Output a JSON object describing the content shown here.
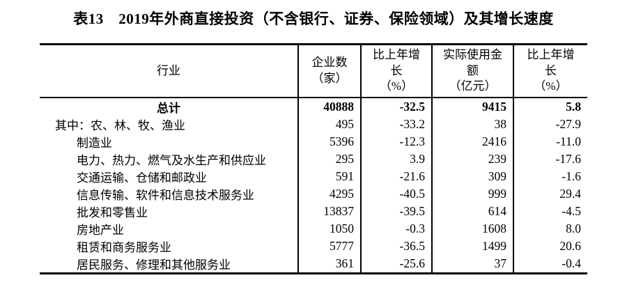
{
  "colors": {
    "background": "#ffffff",
    "text": "#000000",
    "rule_lines": "#000000"
  },
  "title": "表13　2019年外商直接投资（不含银行、证券、保险领域）及其增长速度",
  "table": {
    "columns": [
      {
        "label": "行业"
      },
      {
        "label": "企业数\n（家）"
      },
      {
        "label": "比上年增\n长\n（%）"
      },
      {
        "label": "实际使用金\n额\n（亿元）"
      },
      {
        "label": "比上年增\n长\n（%）"
      }
    ],
    "rows": [
      {
        "industry": "总计",
        "style": "total",
        "values": [
          "40888",
          "-32.5",
          "9415",
          "5.8"
        ]
      },
      {
        "industry": "其中：农、林、牧、渔业",
        "style": "lead",
        "values": [
          "495",
          "-33.2",
          "38",
          "-27.9"
        ]
      },
      {
        "industry": "制造业",
        "style": "sub",
        "values": [
          "5396",
          "-12.3",
          "2416",
          "-11.0"
        ]
      },
      {
        "industry": "电力、热力、燃气及水生产和供应业",
        "style": "sub",
        "values": [
          "295",
          "3.9",
          "239",
          "-17.6"
        ]
      },
      {
        "industry": "交通运输、仓储和邮政业",
        "style": "sub",
        "values": [
          "591",
          "-21.6",
          "309",
          "-1.6"
        ]
      },
      {
        "industry": "信息传输、软件和信息技术服务业",
        "style": "sub",
        "values": [
          "4295",
          "-40.5",
          "999",
          "29.4"
        ]
      },
      {
        "industry": "批发和零售业",
        "style": "sub",
        "values": [
          "13837",
          "-39.5",
          "614",
          "-4.5"
        ]
      },
      {
        "industry": "房地产业",
        "style": "sub",
        "values": [
          "1050",
          "-0.3",
          "1608",
          "8.0"
        ]
      },
      {
        "industry": "租赁和商务服务业",
        "style": "sub",
        "values": [
          "5777",
          "-36.5",
          "1499",
          "20.6"
        ]
      },
      {
        "industry": "居民服务、修理和其他服务业",
        "style": "sub",
        "values": [
          "361",
          "-25.6",
          "37",
          "-0.4"
        ]
      }
    ]
  }
}
